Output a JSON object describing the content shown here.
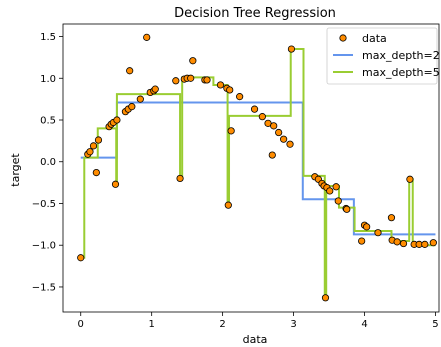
{
  "chart_data": {
    "type": "scatter",
    "title": "Decision Tree Regression",
    "xlabel": "data",
    "ylabel": "target",
    "xlim": [
      -0.25,
      5.05
    ],
    "ylim": [
      -1.8,
      1.65
    ],
    "xticks": [
      0,
      1,
      2,
      3,
      4,
      5
    ],
    "yticks": [
      -1.5,
      -1.0,
      -0.5,
      0.0,
      0.5,
      1.0,
      1.5
    ],
    "xtick_labels": [
      "0",
      "1",
      "2",
      "3",
      "4",
      "5"
    ],
    "ytick_labels": [
      "−1.5",
      "−1.0",
      "−0.5",
      "0.0",
      "0.5",
      "1.0",
      "1.5"
    ],
    "grid": false,
    "legend_position": "top-right",
    "legend": [
      "data",
      "max_depth=2",
      "max_depth=5"
    ],
    "colors": {
      "data_fill": "#ff8c00",
      "data_edge": "#000000",
      "max_depth_2": "#6495ed",
      "max_depth_5": "#9acd32"
    },
    "scatter": {
      "name": "data",
      "points": [
        [
          0.0,
          -1.15
        ],
        [
          0.1,
          0.09
        ],
        [
          0.13,
          0.12
        ],
        [
          0.18,
          0.19
        ],
        [
          0.22,
          -0.13
        ],
        [
          0.25,
          0.26
        ],
        [
          0.4,
          0.42
        ],
        [
          0.43,
          0.45
        ],
        [
          0.46,
          0.47
        ],
        [
          0.49,
          -0.27
        ],
        [
          0.51,
          0.5
        ],
        [
          0.63,
          0.6
        ],
        [
          0.67,
          0.63
        ],
        [
          0.69,
          1.09
        ],
        [
          0.72,
          0.66
        ],
        [
          0.84,
          0.75
        ],
        [
          0.93,
          1.49
        ],
        [
          0.98,
          0.83
        ],
        [
          1.03,
          0.85
        ],
        [
          1.05,
          0.87
        ],
        [
          1.34,
          0.97
        ],
        [
          1.4,
          -0.2
        ],
        [
          1.46,
          0.99
        ],
        [
          1.5,
          1.0
        ],
        [
          1.55,
          1.0
        ],
        [
          1.58,
          1.21
        ],
        [
          1.75,
          0.98
        ],
        [
          1.78,
          0.98
        ],
        [
          1.97,
          0.92
        ],
        [
          2.06,
          0.88
        ],
        [
          2.08,
          -0.52
        ],
        [
          2.1,
          0.86
        ],
        [
          2.12,
          0.37
        ],
        [
          2.24,
          0.78
        ],
        [
          2.45,
          0.63
        ],
        [
          2.56,
          0.54
        ],
        [
          2.64,
          0.46
        ],
        [
          2.7,
          0.08
        ],
        [
          2.72,
          0.43
        ],
        [
          2.79,
          0.35
        ],
        [
          2.86,
          0.27
        ],
        [
          2.95,
          0.21
        ],
        [
          2.97,
          1.35
        ],
        [
          3.3,
          -0.18
        ],
        [
          3.35,
          -0.21
        ],
        [
          3.4,
          -0.26
        ],
        [
          3.43,
          -0.29
        ],
        [
          3.45,
          -1.63
        ],
        [
          3.47,
          -0.31
        ],
        [
          3.51,
          -0.35
        ],
        [
          3.6,
          -0.3
        ],
        [
          3.63,
          -0.47
        ],
        [
          3.74,
          -0.56
        ],
        [
          3.75,
          -0.57
        ],
        [
          3.96,
          -0.95
        ],
        [
          4.0,
          -0.76
        ],
        [
          4.03,
          -0.78
        ],
        [
          4.19,
          -0.85
        ],
        [
          4.38,
          -0.67
        ],
        [
          4.39,
          -0.94
        ],
        [
          4.46,
          -0.96
        ],
        [
          4.55,
          -0.98
        ],
        [
          4.64,
          -0.21
        ],
        [
          4.7,
          -0.99
        ],
        [
          4.77,
          -0.99
        ],
        [
          4.85,
          -0.99
        ],
        [
          4.97,
          -0.97
        ]
      ]
    },
    "series": [
      {
        "name": "max_depth=2",
        "steps": [
          [
            0.0,
            0.05
          ],
          [
            0.51,
            0.71
          ],
          [
            3.13,
            -0.45
          ],
          [
            3.85,
            -0.87
          ],
          [
            5.0,
            -0.87
          ]
        ]
      },
      {
        "name": "max_depth=5",
        "steps": [
          [
            0.0,
            -1.15
          ],
          [
            0.05,
            0.05
          ],
          [
            0.18,
            0.05
          ],
          [
            0.24,
            0.4
          ],
          [
            0.48,
            0.4
          ],
          [
            0.5,
            -0.27
          ],
          [
            0.51,
            0.81
          ],
          [
            1.37,
            0.81
          ],
          [
            1.4,
            -0.2
          ],
          [
            1.43,
            1.01
          ],
          [
            1.86,
            1.01
          ],
          [
            1.87,
            0.92
          ],
          [
            2.05,
            0.92
          ],
          [
            2.07,
            -0.52
          ],
          [
            2.09,
            0.55
          ],
          [
            2.94,
            0.55
          ],
          [
            2.96,
            1.35
          ],
          [
            3.13,
            1.35
          ],
          [
            3.14,
            -0.17
          ],
          [
            3.43,
            -0.17
          ],
          [
            3.44,
            -1.63
          ],
          [
            3.46,
            -0.29
          ],
          [
            3.63,
            -0.29
          ],
          [
            3.64,
            -0.55
          ],
          [
            3.85,
            -0.55
          ],
          [
            3.86,
            -0.83
          ],
          [
            4.37,
            -0.83
          ],
          [
            4.38,
            -0.95
          ],
          [
            4.62,
            -0.95
          ],
          [
            4.63,
            -0.21
          ],
          [
            4.67,
            -0.21
          ],
          [
            4.68,
            -1.0
          ],
          [
            5.0,
            -1.0
          ]
        ]
      }
    ]
  }
}
